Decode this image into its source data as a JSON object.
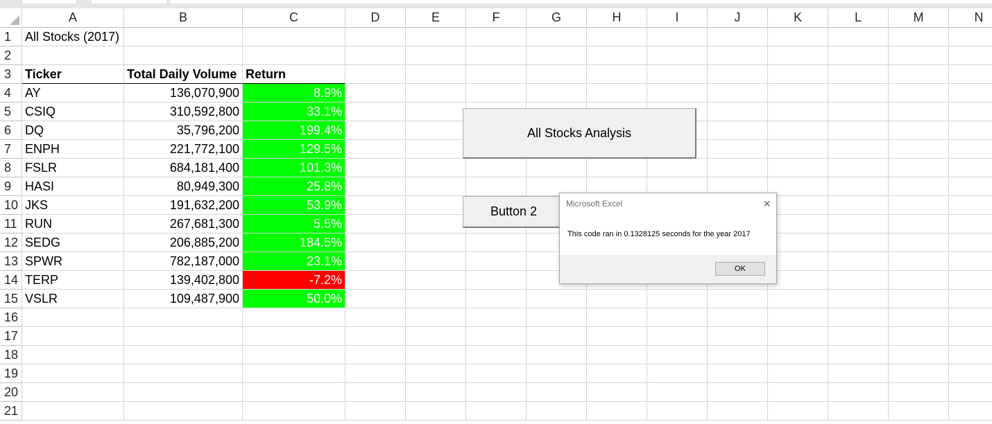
{
  "columns": [
    "A",
    "B",
    "C",
    "D",
    "E",
    "F",
    "G",
    "H",
    "I",
    "J",
    "K",
    "L",
    "M",
    "N"
  ],
  "rows": [
    "1",
    "2",
    "3",
    "4",
    "5",
    "6",
    "7",
    "8",
    "9",
    "10",
    "11",
    "12",
    "13",
    "14",
    "15",
    "16",
    "17",
    "18",
    "19",
    "20",
    "21"
  ],
  "sheet": {
    "title": "All Stocks (2017)",
    "headers": {
      "ticker": "Ticker",
      "volume": "Total Daily Volume",
      "return": "Return"
    },
    "stocks": [
      {
        "ticker": "AY",
        "volume": "136,070,900",
        "return": "8.9%",
        "status": "positive"
      },
      {
        "ticker": "CSIQ",
        "volume": "310,592,800",
        "return": "33.1%",
        "status": "positive"
      },
      {
        "ticker": "DQ",
        "volume": "35,796,200",
        "return": "199.4%",
        "status": "positive"
      },
      {
        "ticker": "ENPH",
        "volume": "221,772,100",
        "return": "129.5%",
        "status": "positive"
      },
      {
        "ticker": "FSLR",
        "volume": "684,181,400",
        "return": "101.3%",
        "status": "positive"
      },
      {
        "ticker": "HASI",
        "volume": "80,949,300",
        "return": "25.8%",
        "status": "positive"
      },
      {
        "ticker": "JKS",
        "volume": "191,632,200",
        "return": "53.9%",
        "status": "positive"
      },
      {
        "ticker": "RUN",
        "volume": "267,681,300",
        "return": "5.5%",
        "status": "positive"
      },
      {
        "ticker": "SEDG",
        "volume": "206,885,200",
        "return": "184.5%",
        "status": "positive"
      },
      {
        "ticker": "SPWR",
        "volume": "782,187,000",
        "return": "23.1%",
        "status": "positive"
      },
      {
        "ticker": "TERP",
        "volume": "139,402,800",
        "return": "-7.2%",
        "status": "negative"
      },
      {
        "ticker": "VSLR",
        "volume": "109,487,900",
        "return": "50.0%",
        "status": "positive"
      }
    ]
  },
  "buttons": {
    "analysis_label": "All Stocks Analysis",
    "button2_label": "Button 2"
  },
  "dialog": {
    "title": "Microsoft Excel",
    "close_glyph": "×",
    "message": "This code ran in 0.1328125 seconds for the year 2017",
    "ok_label": "OK"
  },
  "colors": {
    "positive": "#00ff00",
    "negative": "#ff0000"
  }
}
